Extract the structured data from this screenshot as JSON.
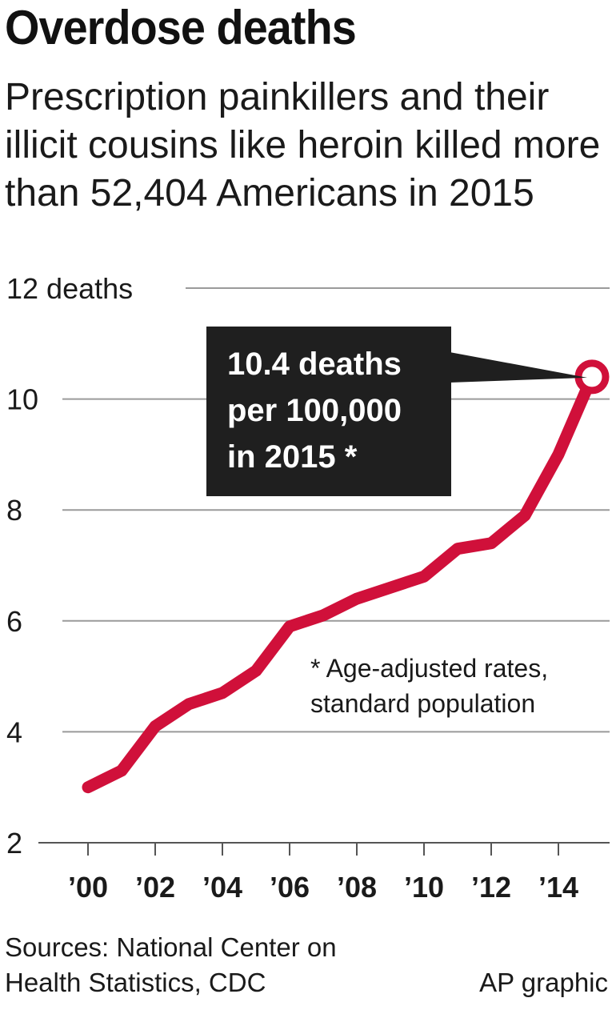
{
  "header": {
    "title": "Overdose deaths",
    "subtitle": "Prescription painkillers and their illicit cousins like heroin killed more than 52,404 Americans in 2015"
  },
  "callout": {
    "lines": [
      "10.4 deaths",
      "per 100,000",
      "in 2015 *"
    ]
  },
  "note": {
    "lines": [
      "* Age-adjusted rates,",
      "standard population"
    ]
  },
  "footer": {
    "sources_line1": "Sources: National Center on",
    "sources_line2": "Health Statistics, CDC",
    "credit": "AP graphic"
  },
  "colors": {
    "line": "#d0103a",
    "callout_bg": "#1f1f1f",
    "grid": "#9a9a9a"
  },
  "chart_data": {
    "type": "line",
    "title": "Overdose deaths",
    "x": [
      2000,
      2001,
      2002,
      2003,
      2004,
      2005,
      2006,
      2007,
      2008,
      2009,
      2010,
      2011,
      2012,
      2013,
      2014,
      2015
    ],
    "x_tick_values": [
      2000,
      2002,
      2004,
      2006,
      2008,
      2010,
      2012,
      2014
    ],
    "x_tick_labels": [
      "’00",
      "’02",
      "’04",
      "’06",
      "’08",
      "’10",
      "’12",
      "’14"
    ],
    "series": [
      {
        "values": [
          3.0,
          3.3,
          4.1,
          4.5,
          4.7,
          5.1,
          5.9,
          6.1,
          6.4,
          6.6,
          6.8,
          7.3,
          7.4,
          7.9,
          9.0,
          10.4
        ]
      }
    ],
    "y_ticks": [
      2,
      4,
      6,
      8,
      10,
      12
    ],
    "y_tick_labels": [
      "2",
      "4",
      "6",
      "8",
      "10",
      "12 deaths"
    ],
    "ylim": [
      2,
      12
    ],
    "xlim": [
      2000,
      2015
    ],
    "grid": true,
    "highlight_point": {
      "x": 2015,
      "y": 10.4
    }
  }
}
